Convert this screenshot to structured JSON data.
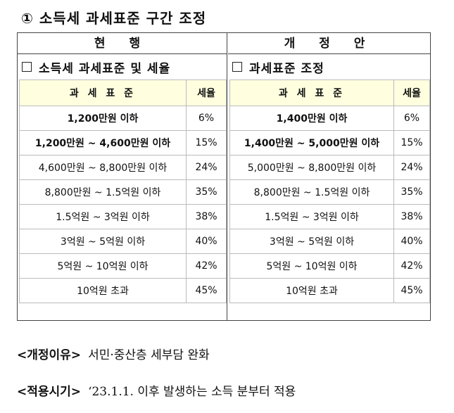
{
  "title": "① 소득세 과세표준 구간 조정",
  "left": {
    "header": "현 행",
    "subtitle": "소득세 과세표준 및 세율",
    "table_headers": [
      "과 세 표 준",
      "세율"
    ],
    "rows": [
      {
        "bracket": "1,200만원 이하",
        "rate": "6%",
        "bold": true
      },
      {
        "bracket": "1,200만원 ~ 4,600만원 이하",
        "rate": "15%",
        "bold": true
      },
      {
        "bracket": "4,600만원 ~ 8,800만원 이하",
        "rate": "24%",
        "bold": false
      },
      {
        "bracket": "8,800만원 ~ 1.5억원 이하",
        "rate": "35%",
        "bold": false
      },
      {
        "bracket": "1.5억원 ~ 3억원 이하",
        "rate": "38%",
        "bold": false
      },
      {
        "bracket": "3억원 ~ 5억원 이하",
        "rate": "40%",
        "bold": false
      },
      {
        "bracket": "5억원 ~ 10억원 이하",
        "rate": "42%",
        "bold": false
      },
      {
        "bracket": "10억원 초과",
        "rate": "45%",
        "bold": false
      }
    ]
  },
  "right": {
    "header": "개 정 안",
    "subtitle": "과세표준 조정",
    "table_headers": [
      "과 세 표 준",
      "세율"
    ],
    "rows": [
      {
        "bracket": "1,400만원 이하",
        "rate": "6%",
        "bold": true
      },
      {
        "bracket": "1,400만원 ~ 5,000만원 이하",
        "rate": "15%",
        "bold": true
      },
      {
        "bracket": "5,000만원 ~ 8,800만원 이하",
        "rate": "24%",
        "bold": false
      },
      {
        "bracket": "8,800만원 ~ 1.5억원 이하",
        "rate": "35%",
        "bold": false
      },
      {
        "bracket": "1.5억원 ~ 3억원 이하",
        "rate": "38%",
        "bold": false
      },
      {
        "bracket": "3억원 ~ 5억원 이하",
        "rate": "40%",
        "bold": false
      },
      {
        "bracket": "5억원 ~ 10억원 이하",
        "rate": "42%",
        "bold": false
      },
      {
        "bracket": "10억원 초과",
        "rate": "45%",
        "bold": false
      }
    ]
  },
  "footer": {
    "reason_label": "<개정이유>",
    "reason_text": "서민·중산층 세부담 완화",
    "timing_label": "<적용시기>",
    "timing_text": "‘23.1.1. 이후 발생하는 소득 분부터 적용"
  }
}
